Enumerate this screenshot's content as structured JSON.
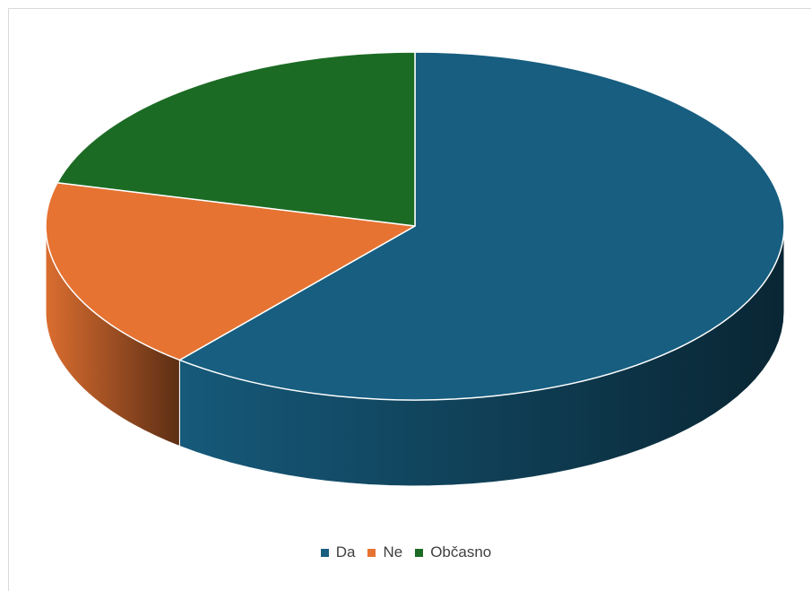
{
  "chart_data": {
    "type": "pie",
    "style": "3d",
    "title": "",
    "legend_position": "bottom",
    "slices": [
      {
        "label": "Da",
        "value": 61,
        "color": "#175e80"
      },
      {
        "label": "Ne",
        "value": 18,
        "color": "#e67332"
      },
      {
        "label": "Občasno",
        "value": 21,
        "color": "#1c6b24"
      }
    ]
  }
}
